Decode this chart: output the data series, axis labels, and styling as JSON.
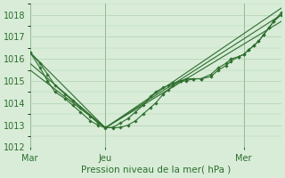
{
  "background_color": "#d8ecd8",
  "grid_color": "#b0d0b0",
  "line_color": "#2d6e2d",
  "marker_color": "#2d6e2d",
  "xlabel": "Pression niveau de la mer( hPa )",
  "ylim": [
    1012,
    1018.5
  ],
  "yticks": [
    1012,
    1013,
    1014,
    1015,
    1016,
    1017,
    1018
  ],
  "xtick_labels": [
    "Mar",
    "Jeu",
    "Mer"
  ],
  "xtick_positions": [
    0.0,
    0.3,
    0.85
  ],
  "vline_positions": [
    0.0,
    0.3,
    0.85
  ],
  "series": [
    {
      "x": [
        0.0,
        0.04,
        0.07,
        0.1,
        0.14,
        0.17,
        0.2,
        0.24,
        0.27,
        0.3,
        0.33,
        0.36,
        0.39,
        0.42,
        0.45,
        0.48,
        0.5,
        0.53,
        0.55,
        0.57,
        0.6,
        0.62,
        0.65,
        0.68,
        0.72,
        0.75,
        0.78,
        0.8,
        0.83,
        0.85,
        0.87,
        0.89,
        0.91,
        0.93,
        0.95,
        0.97,
        1.0
      ],
      "y": [
        1016.3,
        1015.8,
        1015.3,
        1014.8,
        1014.4,
        1014.1,
        1013.8,
        1013.4,
        1013.1,
        1012.9,
        1012.88,
        1012.9,
        1013.0,
        1013.2,
        1013.5,
        1013.8,
        1014.0,
        1014.4,
        1014.6,
        1014.8,
        1015.0,
        1015.1,
        1015.1,
        1015.1,
        1015.2,
        1015.5,
        1015.7,
        1015.9,
        1016.1,
        1016.2,
        1016.4,
        1016.6,
        1016.8,
        1017.1,
        1017.4,
        1017.7,
        1018.1
      ]
    },
    {
      "x": [
        0.0,
        0.3,
        1.0
      ],
      "y": [
        1016.3,
        1012.88,
        1018.3
      ]
    },
    {
      "x": [
        0.0,
        0.3,
        1.0
      ],
      "y": [
        1015.8,
        1012.88,
        1018.0
      ]
    },
    {
      "x": [
        0.0,
        0.3,
        1.0
      ],
      "y": [
        1015.5,
        1012.88,
        1017.7
      ]
    },
    {
      "x": [
        0.0,
        0.04,
        0.07,
        0.1,
        0.14,
        0.17,
        0.2,
        0.24,
        0.27,
        0.3,
        0.33,
        0.36,
        0.39,
        0.42,
        0.45,
        0.48,
        0.5,
        0.53,
        0.55,
        0.57,
        0.6,
        0.62,
        0.65,
        0.68,
        0.72,
        0.75,
        0.78,
        0.8,
        0.83,
        0.85,
        0.87,
        0.89,
        0.91,
        0.93,
        0.95,
        0.97,
        1.0
      ],
      "y": [
        1016.3,
        1015.6,
        1015.0,
        1014.5,
        1014.2,
        1013.9,
        1013.6,
        1013.2,
        1013.0,
        1012.88,
        1012.9,
        1013.1,
        1013.3,
        1013.6,
        1013.9,
        1014.3,
        1014.5,
        1014.7,
        1014.8,
        1014.9,
        1015.0,
        1015.0,
        1015.1,
        1015.1,
        1015.3,
        1015.6,
        1015.8,
        1016.0,
        1016.1,
        1016.2,
        1016.4,
        1016.6,
        1016.8,
        1017.1,
        1017.4,
        1017.7,
        1018.0
      ]
    }
  ]
}
